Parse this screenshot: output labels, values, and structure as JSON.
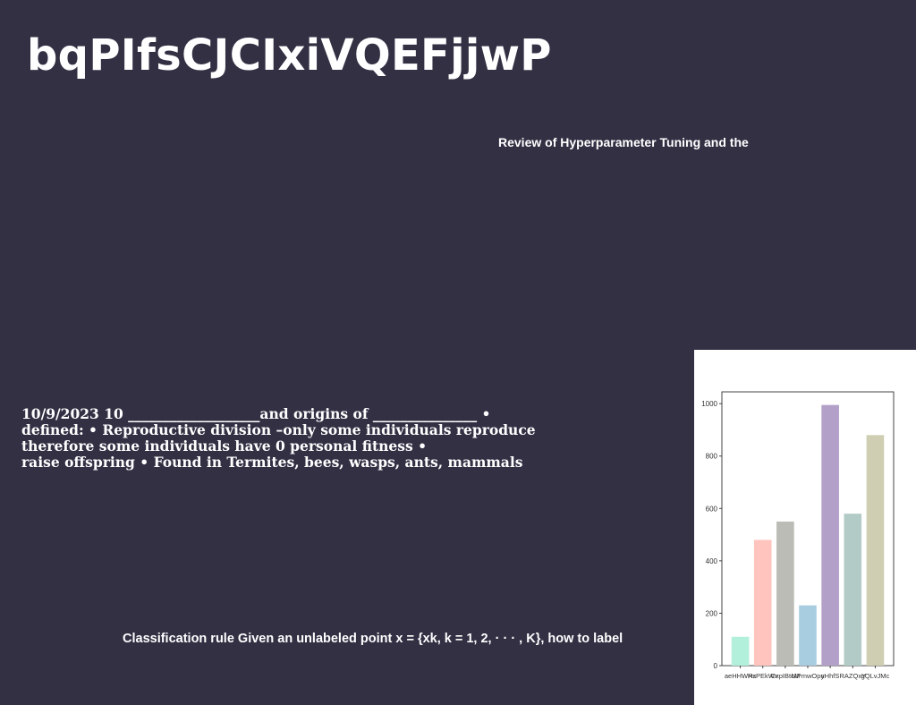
{
  "slide": {
    "title": "bqPIfsCJCIxiVQEFjjwP",
    "subtitle": "Review of Hyperparameter Tuning and the",
    "body_lines": [
      "10/9/2023 10 ___________________and origins of _______________ •",
      "defined: • Reproductive division –only some individuals reproduce",
      "therefore some individuals have 0 personal fitness •",
      "raise offspring • Found in Termites, bees, wasps, ants, mammals"
    ],
    "caption": "Classification rule Given an unlabeled point x = {xk, k = 1, 2, · · · , K}, how to label"
  },
  "chart_data": {
    "type": "bar",
    "categories": [
      "aeHHWRz",
      "HsPEkWv",
      "CxpIBtcM",
      "MPmwOpn",
      "yHhfS",
      "RAZQxY",
      "gQLvJMc"
    ],
    "values": [
      110,
      480,
      550,
      230,
      995,
      580,
      880
    ],
    "colors": [
      "#b3f0dc",
      "#ffc4bd",
      "#bcbcb6",
      "#a9cde0",
      "#b3a0c8",
      "#b3cbc6",
      "#cfcdb2"
    ],
    "ylim": [
      0,
      1045
    ],
    "yticks": [
      0,
      200,
      400,
      600,
      800,
      1000
    ],
    "xlabel": "",
    "ylabel": "",
    "grid": false
  }
}
